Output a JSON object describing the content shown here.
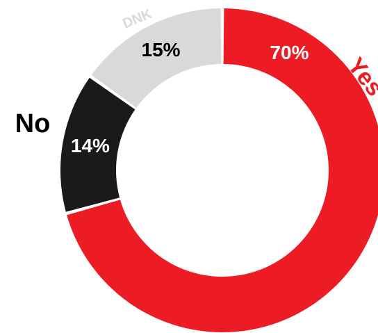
{
  "chart_data": {
    "type": "pie",
    "subtype": "donut",
    "slices": [
      {
        "category": "Yes",
        "value": 70,
        "label": "70%",
        "color": "#ed1c24"
      },
      {
        "category": "No",
        "value": 14,
        "label": "14%",
        "color": "#1a1a1a"
      },
      {
        "category": "DNK",
        "value": 15,
        "label": "15%",
        "color": "#d9d9d9"
      }
    ],
    "value_label_colors": [
      "#ffffff",
      "#ffffff",
      "#000000"
    ],
    "category_label_colors": [
      "#ed1c24",
      "#000000",
      "#d9d9d9"
    ],
    "start": "12 o'clock",
    "direction": "clockwise",
    "legend": "none"
  }
}
